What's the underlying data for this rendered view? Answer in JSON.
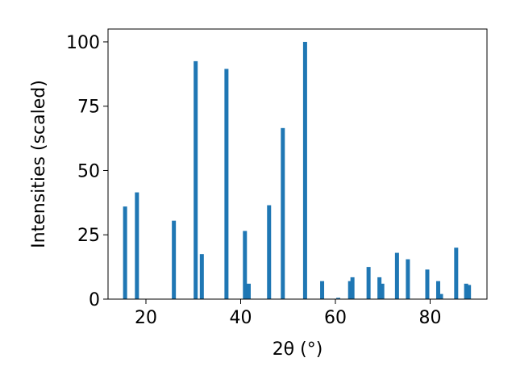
{
  "chart_data": {
    "type": "bar",
    "xlabel": "2θ (°)",
    "ylabel": "Intensities (scaled)",
    "xlim": [
      12,
      92
    ],
    "ylim": [
      0,
      105
    ],
    "x_ticks": [
      20,
      40,
      60,
      80
    ],
    "y_ticks": [
      0,
      25,
      50,
      75,
      100
    ],
    "grid": false,
    "bar_color": "#1f77b4",
    "x": [
      15.6,
      18.1,
      25.9,
      30.5,
      31.8,
      37.0,
      40.9,
      41.7,
      46.0,
      48.9,
      53.6,
      57.2,
      60.6,
      63.1,
      63.6,
      67.0,
      69.3,
      69.9,
      73.0,
      75.3,
      79.4,
      81.7,
      82.3,
      85.5,
      87.6,
      88.2
    ],
    "values": [
      36,
      41.5,
      30.5,
      92.5,
      17.5,
      89.5,
      26.5,
      6,
      36.5,
      66.5,
      100,
      7,
      0.5,
      7,
      8.5,
      12.5,
      8.5,
      6,
      18,
      15.5,
      11.5,
      7,
      2,
      20,
      6,
      5.5
    ]
  }
}
